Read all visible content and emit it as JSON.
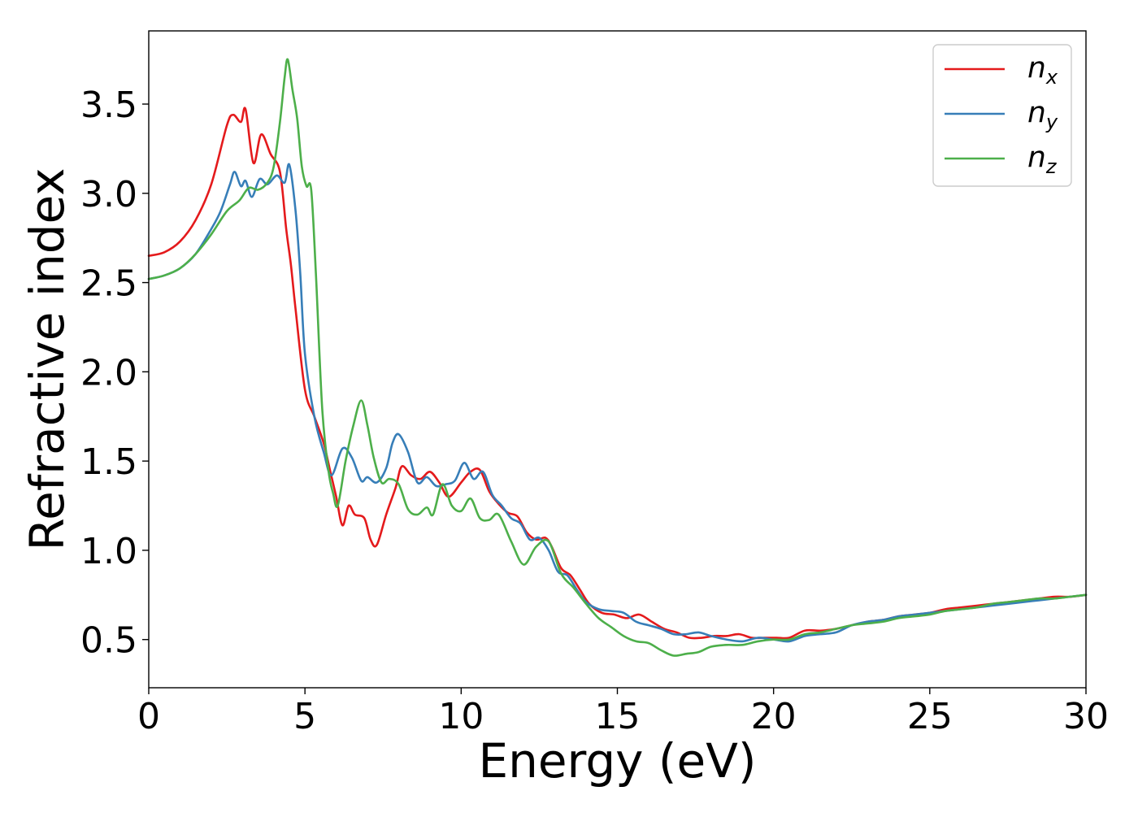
{
  "chart_data": {
    "type": "line",
    "title": "",
    "xlabel": "Energy (eV)",
    "ylabel": "Refractive index",
    "xlim": [
      0,
      30
    ],
    "ylim": [
      0.23,
      3.91
    ],
    "xticks": [
      0,
      5,
      10,
      15,
      20,
      25,
      30
    ],
    "xtick_labels": [
      "0",
      "5",
      "10",
      "15",
      "20",
      "25",
      "30"
    ],
    "yticks": [
      0.5,
      1.0,
      1.5,
      2.0,
      2.5,
      3.0,
      3.5
    ],
    "ytick_labels": [
      "0.5",
      "1.0",
      "1.5",
      "2.0",
      "2.5",
      "3.0",
      "3.5"
    ],
    "grid": false,
    "legend_position": "top-right",
    "series": [
      {
        "name": "n",
        "subscript": "x",
        "color": "#e41a1c",
        "x": [
          0,
          0.5,
          1.0,
          1.5,
          2.0,
          2.5,
          2.7,
          2.95,
          3.1,
          3.35,
          3.6,
          3.9,
          4.2,
          4.4,
          4.55,
          4.7,
          5.0,
          5.3,
          5.6,
          5.8,
          6.0,
          6.2,
          6.4,
          6.6,
          6.9,
          7.1,
          7.3,
          7.6,
          7.9,
          8.1,
          8.4,
          8.7,
          9.0,
          9.3,
          9.6,
          10.0,
          10.3,
          10.6,
          10.9,
          11.2,
          11.5,
          11.8,
          12.1,
          12.4,
          12.7,
          12.9,
          13.2,
          13.5,
          13.8,
          14.1,
          14.5,
          14.9,
          15.3,
          15.7,
          16.1,
          16.5,
          16.9,
          17.3,
          17.7,
          18.1,
          18.5,
          18.9,
          19.3,
          19.7,
          20.1,
          20.5,
          21.0,
          21.5,
          22.0,
          22.5,
          23.0,
          23.5,
          24.0,
          24.5,
          25.0,
          25.5,
          26.0,
          26.5,
          27.0,
          27.5,
          28.0,
          28.5,
          29.0,
          29.5,
          30.0
        ],
        "y": [
          2.65,
          2.67,
          2.73,
          2.85,
          3.05,
          3.38,
          3.44,
          3.4,
          3.47,
          3.17,
          3.33,
          3.22,
          3.12,
          2.8,
          2.6,
          2.35,
          1.9,
          1.75,
          1.6,
          1.45,
          1.3,
          1.14,
          1.25,
          1.2,
          1.18,
          1.06,
          1.03,
          1.2,
          1.35,
          1.47,
          1.42,
          1.4,
          1.44,
          1.38,
          1.3,
          1.38,
          1.44,
          1.45,
          1.33,
          1.26,
          1.21,
          1.19,
          1.1,
          1.06,
          1.07,
          1.02,
          0.9,
          0.86,
          0.78,
          0.7,
          0.65,
          0.64,
          0.62,
          0.64,
          0.6,
          0.56,
          0.54,
          0.51,
          0.51,
          0.52,
          0.52,
          0.53,
          0.51,
          0.51,
          0.51,
          0.51,
          0.55,
          0.55,
          0.56,
          0.58,
          0.6,
          0.61,
          0.63,
          0.64,
          0.65,
          0.67,
          0.68,
          0.69,
          0.7,
          0.71,
          0.72,
          0.73,
          0.74,
          0.74,
          0.75
        ]
      },
      {
        "name": "n",
        "subscript": "y",
        "color": "#377eb8",
        "x": [
          0,
          0.5,
          1.0,
          1.5,
          2.0,
          2.3,
          2.6,
          2.75,
          2.95,
          3.1,
          3.3,
          3.55,
          3.8,
          4.1,
          4.35,
          4.5,
          4.7,
          4.85,
          5.0,
          5.3,
          5.6,
          5.85,
          6.2,
          6.5,
          6.8,
          7.0,
          7.3,
          7.6,
          7.8,
          8.0,
          8.3,
          8.6,
          8.9,
          9.2,
          9.5,
          9.8,
          10.1,
          10.4,
          10.7,
          11.0,
          11.3,
          11.6,
          11.9,
          12.2,
          12.5,
          12.8,
          13.1,
          13.4,
          13.7,
          14.0,
          14.4,
          14.8,
          15.2,
          15.6,
          16.0,
          16.4,
          16.8,
          17.2,
          17.6,
          18.0,
          18.5,
          19.0,
          19.5,
          20.0,
          20.5,
          21.0,
          21.5,
          22.0,
          22.5,
          23.0,
          23.5,
          24.0,
          24.5,
          25.0,
          25.5,
          26.0,
          26.5,
          27.0,
          27.5,
          28.0,
          28.5,
          29.0,
          29.5,
          30.0
        ],
        "y": [
          2.52,
          2.54,
          2.58,
          2.66,
          2.8,
          2.9,
          3.05,
          3.12,
          3.04,
          3.07,
          2.98,
          3.08,
          3.05,
          3.1,
          3.06,
          3.16,
          2.9,
          2.55,
          2.1,
          1.75,
          1.55,
          1.42,
          1.57,
          1.52,
          1.39,
          1.41,
          1.38,
          1.46,
          1.6,
          1.65,
          1.55,
          1.38,
          1.41,
          1.36,
          1.37,
          1.39,
          1.49,
          1.4,
          1.44,
          1.31,
          1.25,
          1.18,
          1.15,
          1.06,
          1.07,
          1.0,
          0.88,
          0.86,
          0.78,
          0.71,
          0.67,
          0.66,
          0.65,
          0.6,
          0.58,
          0.56,
          0.53,
          0.53,
          0.54,
          0.52,
          0.5,
          0.49,
          0.51,
          0.5,
          0.49,
          0.52,
          0.53,
          0.54,
          0.58,
          0.6,
          0.61,
          0.63,
          0.64,
          0.65,
          0.66,
          0.67,
          0.68,
          0.69,
          0.7,
          0.71,
          0.72,
          0.73,
          0.74,
          0.75
        ]
      },
      {
        "name": "n",
        "subscript": "z",
        "color": "#4daf4a",
        "x": [
          0,
          0.5,
          1.0,
          1.5,
          2.0,
          2.5,
          2.9,
          3.2,
          3.5,
          3.8,
          4.0,
          4.2,
          4.35,
          4.45,
          4.6,
          4.75,
          4.9,
          5.05,
          5.2,
          5.35,
          5.55,
          5.75,
          5.9,
          6.05,
          6.3,
          6.55,
          6.8,
          7.0,
          7.2,
          7.45,
          7.7,
          8.0,
          8.3,
          8.6,
          8.9,
          9.1,
          9.4,
          9.7,
          10.0,
          10.3,
          10.6,
          10.9,
          11.2,
          11.6,
          12.0,
          12.4,
          12.8,
          13.2,
          13.6,
          14.0,
          14.4,
          14.8,
          15.2,
          15.6,
          16.0,
          16.4,
          16.8,
          17.2,
          17.6,
          18.0,
          18.5,
          19.0,
          19.5,
          20.0,
          20.5,
          21.0,
          21.5,
          22.0,
          22.5,
          23.0,
          23.5,
          24.0,
          24.5,
          25.0,
          25.5,
          26.0,
          26.5,
          27.0,
          27.5,
          28.0,
          28.5,
          29.0,
          29.5,
          30.0
        ],
        "y": [
          2.52,
          2.54,
          2.58,
          2.66,
          2.77,
          2.9,
          2.96,
          3.03,
          3.02,
          3.06,
          3.15,
          3.4,
          3.65,
          3.75,
          3.58,
          3.42,
          3.15,
          3.04,
          3.02,
          2.55,
          1.8,
          1.45,
          1.32,
          1.25,
          1.5,
          1.7,
          1.84,
          1.7,
          1.52,
          1.38,
          1.4,
          1.37,
          1.23,
          1.2,
          1.24,
          1.2,
          1.37,
          1.25,
          1.22,
          1.29,
          1.18,
          1.17,
          1.2,
          1.05,
          0.92,
          1.02,
          1.05,
          0.87,
          0.79,
          0.7,
          0.62,
          0.57,
          0.52,
          0.49,
          0.48,
          0.44,
          0.41,
          0.42,
          0.43,
          0.46,
          0.47,
          0.47,
          0.49,
          0.5,
          0.5,
          0.53,
          0.54,
          0.56,
          0.58,
          0.59,
          0.6,
          0.62,
          0.63,
          0.64,
          0.66,
          0.67,
          0.68,
          0.7,
          0.71,
          0.72,
          0.73,
          0.73,
          0.74,
          0.75
        ]
      }
    ]
  }
}
